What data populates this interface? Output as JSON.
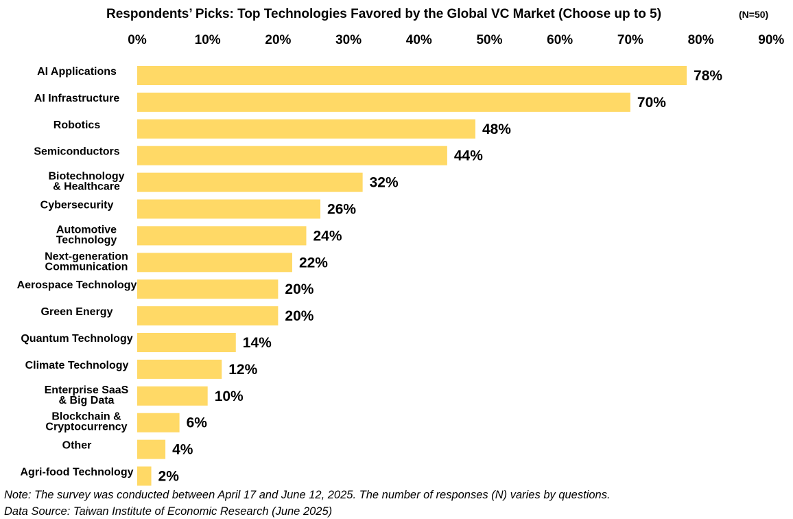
{
  "chart_data": {
    "type": "bar",
    "orientation": "horizontal",
    "title": "Respondents’ Picks: Top Technologies Favored by the Global VC Market (Choose up to 5)",
    "sample_size": "(N=50)",
    "xlim": [
      0,
      90
    ],
    "xticks": [
      0,
      10,
      20,
      30,
      40,
      50,
      60,
      70,
      80,
      90
    ],
    "tick_suffix": "%",
    "xtick_labels": [
      "0%",
      "10%",
      "20%",
      "30%",
      "40%",
      "50%",
      "60%",
      "70%",
      "80%",
      "90%"
    ],
    "axis_position": "top",
    "grid": false,
    "bar_color": "#FFD966",
    "categories": [
      [
        "AI Applications"
      ],
      [
        "AI Infrastructure"
      ],
      [
        "Robotics"
      ],
      [
        "Semiconductors"
      ],
      [
        "Biotechnology",
        "& Healthcare"
      ],
      [
        "Cybersecurity"
      ],
      [
        "Automotive",
        "Technology"
      ],
      [
        "Next-generation",
        "Communication"
      ],
      [
        "Aerospace Technology"
      ],
      [
        "Green Energy"
      ],
      [
        "Quantum Technology"
      ],
      [
        "Climate Technology"
      ],
      [
        "Enterprise SaaS",
        "& Big Data"
      ],
      [
        "Blockchain &",
        "Cryptocurrency"
      ],
      [
        "Other"
      ],
      [
        "Agri-food Technology"
      ]
    ],
    "values": [
      78,
      70,
      48,
      44,
      32,
      26,
      24,
      22,
      20,
      20,
      14,
      12,
      10,
      6,
      4,
      2
    ],
    "data_labels": [
      "78%",
      "70%",
      "48%",
      "44%",
      "32%",
      "26%",
      "24%",
      "22%",
      "20%",
      "20%",
      "14%",
      "12%",
      "10%",
      "6%",
      "4%",
      "2%"
    ]
  },
  "notes": {
    "note": "Note: The survey was conducted between April 17 and  June 12, 2025. The number of responses (N) varies by questions.",
    "source": "Data Source: Taiwan Institute of Economic Research (June 2025)"
  }
}
